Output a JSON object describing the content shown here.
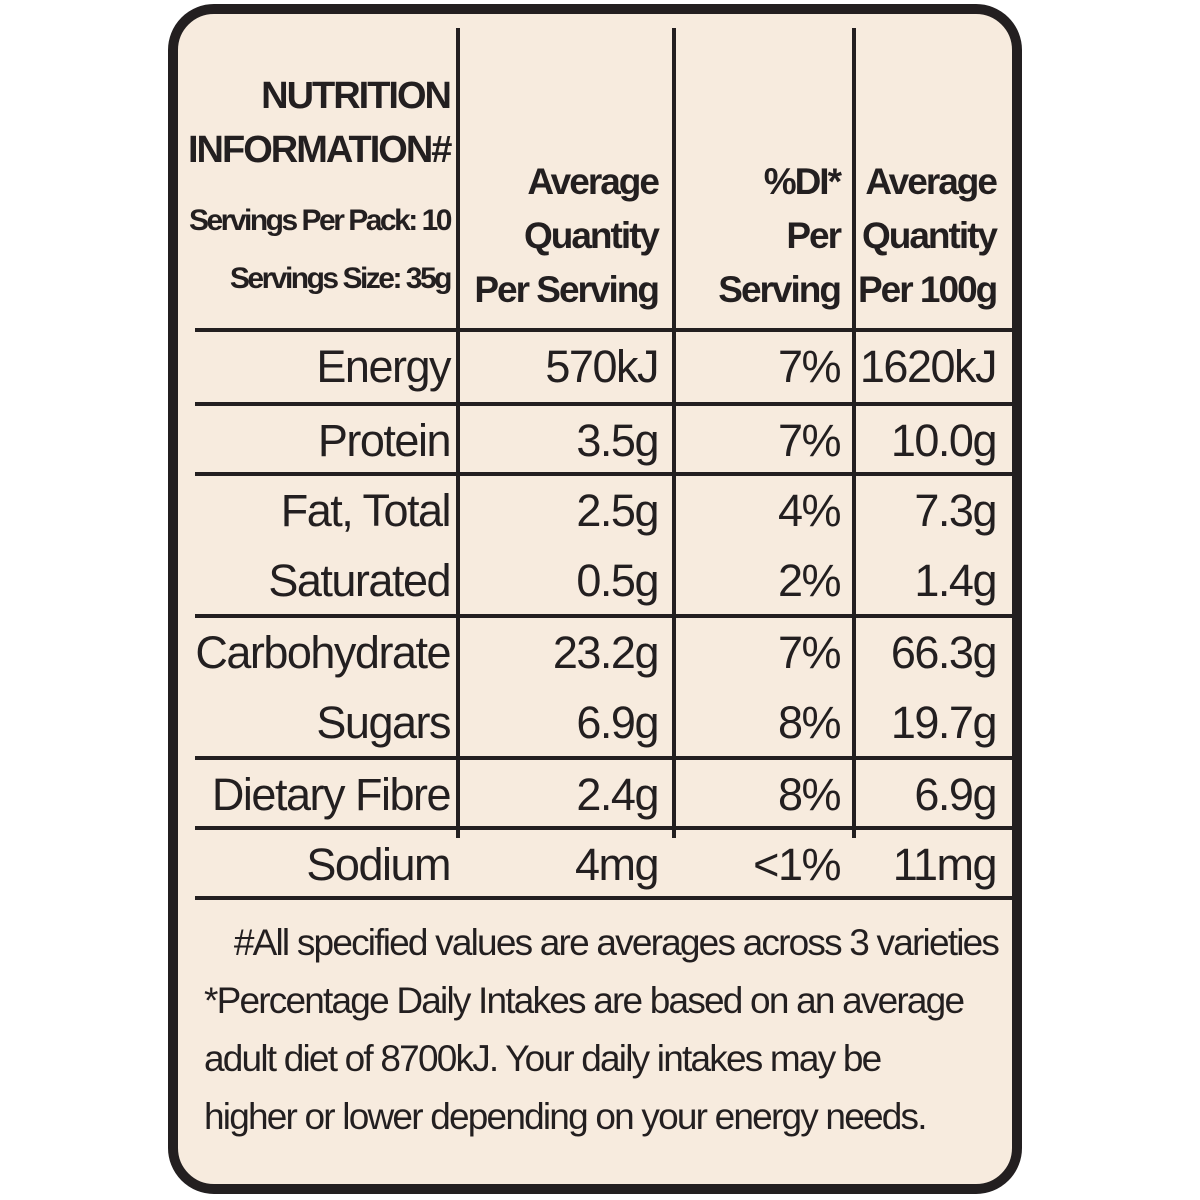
{
  "header": {
    "title_line1": "NUTRITION",
    "title_line2": "INFORMATION#",
    "servings_per_pack": "Servings Per Pack: 10",
    "serving_size": "Servings Size: 35g",
    "col_per_serving": [
      "Average",
      "Quantity",
      "Per Serving"
    ],
    "col_di": [
      "%DI*",
      "Per",
      "Serving"
    ],
    "col_per_100g": [
      "Average",
      "Quantity",
      "Per 100g"
    ]
  },
  "rows": [
    {
      "name": "Energy",
      "per_serving": "570kJ",
      "di": "7%",
      "per_100g": "1620kJ"
    },
    {
      "name": "Protein",
      "per_serving": "3.5g",
      "di": "7%",
      "per_100g": "10.0g"
    },
    {
      "name": "Fat, Total",
      "per_serving": "2.5g",
      "di": "4%",
      "per_100g": "7.3g"
    },
    {
      "name": "Saturated",
      "per_serving": "0.5g",
      "di": "2%",
      "per_100g": "1.4g"
    },
    {
      "name": "Carbohydrate",
      "per_serving": "23.2g",
      "di": "7%",
      "per_100g": "66.3g"
    },
    {
      "name": "Sugars",
      "per_serving": "6.9g",
      "di": "8%",
      "per_100g": "19.7g"
    },
    {
      "name": "Dietary Fibre",
      "per_serving": "2.4g",
      "di": "8%",
      "per_100g": "6.9g"
    },
    {
      "name": "Sodium",
      "per_serving": "4mg",
      "di": "<1%",
      "per_100g": "11mg"
    }
  ],
  "footnotes": [
    "#All specified values are averages across 3 varieties",
    "*Percentage Daily Intakes are based on an average",
    "adult diet of 8700kJ. Your daily intakes may be",
    "higher or lower depending on your energy needs."
  ],
  "colors": {
    "ink": "#231f20",
    "panel": "#f7ebde"
  }
}
